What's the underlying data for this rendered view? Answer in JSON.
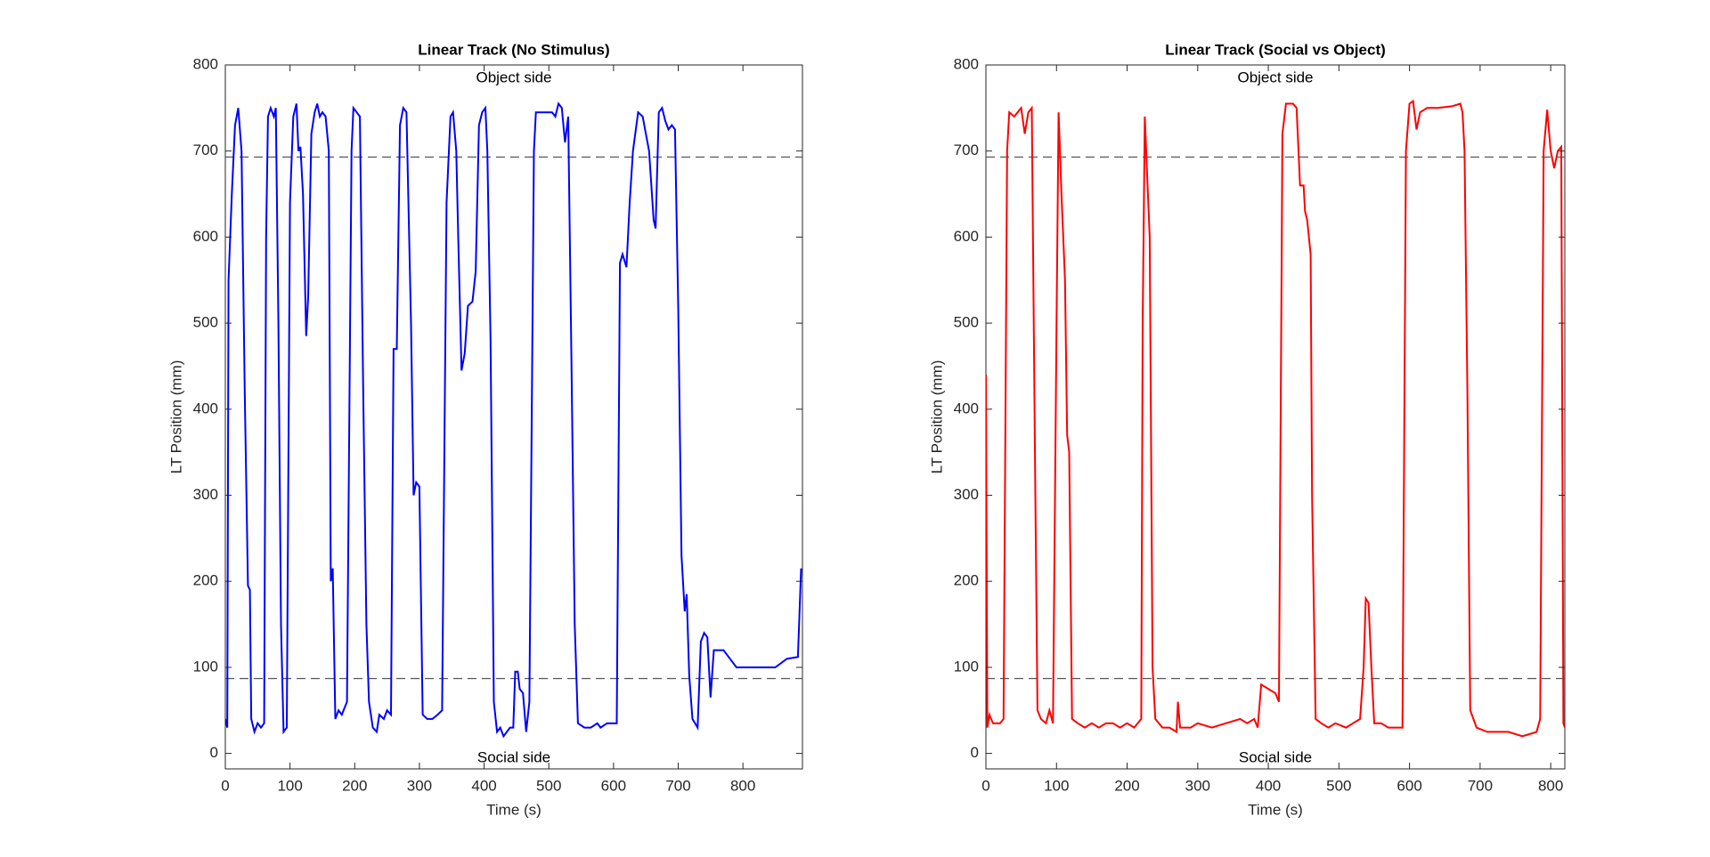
{
  "chart_data": [
    {
      "type": "line",
      "title": "Linear Track (No Stimulus)",
      "xlabel": "Time (s)",
      "ylabel": "LT Position (mm)",
      "annotations": [
        "Object side",
        "Social side"
      ],
      "hlines": [
        693,
        87
      ],
      "xlim": [
        0,
        892
      ],
      "ylim": [
        -18,
        800
      ],
      "xticks": [
        0,
        100,
        200,
        300,
        400,
        500,
        600,
        700,
        800
      ],
      "yticks": [
        0,
        100,
        200,
        300,
        400,
        500,
        600,
        700,
        800
      ],
      "x": [
        0,
        3,
        5,
        10,
        15,
        20,
        25,
        30,
        35,
        38,
        40,
        45,
        50,
        55,
        60,
        63,
        66,
        70,
        75,
        78,
        82,
        86,
        90,
        95,
        100,
        105,
        110,
        113,
        116,
        120,
        125,
        128,
        133,
        138,
        142,
        146,
        150,
        155,
        160,
        163,
        166,
        170,
        175,
        180,
        188,
        195,
        198,
        203,
        208,
        213,
        218,
        222,
        228,
        234,
        238,
        245,
        250,
        256,
        260,
        265,
        270,
        275,
        280,
        287,
        291,
        295,
        300,
        305,
        312,
        320,
        328,
        335,
        342,
        348,
        352,
        357,
        360,
        365,
        370,
        375,
        382,
        387,
        392,
        397,
        402,
        405,
        410,
        415,
        420,
        425,
        430,
        440,
        445,
        448,
        452,
        455,
        460,
        465,
        470,
        477,
        480,
        490,
        505,
        510,
        515,
        520,
        525,
        530,
        535,
        540,
        545,
        555,
        565,
        575,
        580,
        590,
        600,
        605,
        610,
        614,
        620,
        625,
        630,
        638,
        645,
        655,
        662,
        665,
        670,
        675,
        680,
        685,
        690,
        695,
        700,
        705,
        710,
        713,
        717,
        722,
        730,
        735,
        740,
        745,
        750,
        755,
        760,
        770,
        780,
        790,
        810,
        830,
        850,
        868,
        885,
        890
      ],
      "series": [
        {
          "color": "#0000ff",
          "values": [
            40,
            30,
            550,
            650,
            730,
            750,
            700,
            420,
            195,
            190,
            40,
            25,
            35,
            30,
            35,
            600,
            740,
            750,
            740,
            750,
            500,
            150,
            25,
            30,
            640,
            740,
            755,
            700,
            705,
            650,
            485,
            530,
            720,
            745,
            755,
            740,
            745,
            740,
            700,
            200,
            215,
            40,
            50,
            45,
            60,
            700,
            750,
            745,
            740,
            430,
            150,
            60,
            30,
            25,
            45,
            40,
            50,
            45,
            470,
            470,
            730,
            750,
            745,
            500,
            300,
            315,
            310,
            45,
            40,
            40,
            45,
            50,
            640,
            740,
            745,
            700,
            600,
            445,
            465,
            520,
            525,
            560,
            730,
            745,
            750,
            700,
            480,
            60,
            25,
            30,
            20,
            30,
            30,
            95,
            95,
            75,
            70,
            25,
            60,
            700,
            745,
            745,
            745,
            740,
            755,
            750,
            710,
            740,
            450,
            150,
            35,
            30,
            30,
            35,
            30,
            35,
            35,
            35,
            570,
            580,
            565,
            640,
            700,
            745,
            740,
            700,
            620,
            610,
            745,
            750,
            735,
            725,
            730,
            725,
            520,
            230,
            165,
            185,
            90,
            40,
            30,
            130,
            140,
            135,
            65,
            120,
            120,
            120,
            110,
            100,
            100,
            100,
            100,
            110,
            112,
            215
          ]
        }
      ]
    },
    {
      "type": "line",
      "title": "Linear Track (Social vs Object)",
      "xlabel": "Time (s)",
      "ylabel": "LT Position (mm)",
      "annotations": [
        "Object side",
        "Social side"
      ],
      "hlines": [
        693,
        87
      ],
      "xlim": [
        0,
        820
      ],
      "ylim": [
        -18,
        800
      ],
      "xticks": [
        0,
        100,
        200,
        300,
        400,
        500,
        600,
        700,
        800
      ],
      "yticks": [
        0,
        100,
        200,
        300,
        400,
        500,
        600,
        700,
        800
      ],
      "x": [
        0,
        2,
        5,
        10,
        20,
        25,
        30,
        33,
        40,
        50,
        55,
        60,
        65,
        70,
        73,
        78,
        85,
        90,
        95,
        100,
        103,
        107,
        112,
        115,
        118,
        122,
        130,
        140,
        150,
        160,
        170,
        180,
        190,
        200,
        210,
        215,
        220,
        222,
        225,
        228,
        232,
        236,
        240,
        250,
        260,
        270,
        272,
        275,
        290,
        300,
        320,
        340,
        360,
        370,
        380,
        385,
        390,
        400,
        410,
        415,
        420,
        425,
        435,
        440,
        445,
        450,
        452,
        455,
        460,
        462,
        467,
        475,
        485,
        495,
        510,
        520,
        530,
        535,
        538,
        542,
        546,
        550,
        560,
        570,
        580,
        590,
        595,
        600,
        605,
        610,
        615,
        625,
        640,
        660,
        672,
        675,
        678,
        682,
        686,
        695,
        710,
        730,
        740,
        760,
        780,
        785,
        790,
        795,
        800,
        805,
        810,
        815,
        818,
        820
      ],
      "series": [
        {
          "color": "#ff0000",
          "values": [
            440,
            30,
            45,
            35,
            35,
            40,
            700,
            745,
            740,
            750,
            720,
            745,
            750,
            300,
            50,
            40,
            35,
            50,
            35,
            500,
            745,
            650,
            550,
            370,
            350,
            40,
            35,
            30,
            35,
            30,
            35,
            35,
            30,
            35,
            30,
            35,
            40,
            500,
            740,
            680,
            600,
            100,
            40,
            30,
            30,
            25,
            60,
            30,
            30,
            35,
            30,
            35,
            40,
            35,
            40,
            30,
            80,
            75,
            70,
            60,
            720,
            755,
            755,
            750,
            660,
            660,
            630,
            620,
            580,
            300,
            40,
            35,
            30,
            35,
            30,
            35,
            40,
            100,
            180,
            175,
            100,
            35,
            35,
            30,
            30,
            30,
            700,
            755,
            758,
            725,
            745,
            750,
            750,
            752,
            755,
            745,
            700,
            420,
            50,
            30,
            25,
            25,
            25,
            20,
            25,
            40,
            700,
            748,
            700,
            680,
            700,
            705,
            35,
            30
          ]
        }
      ]
    }
  ]
}
